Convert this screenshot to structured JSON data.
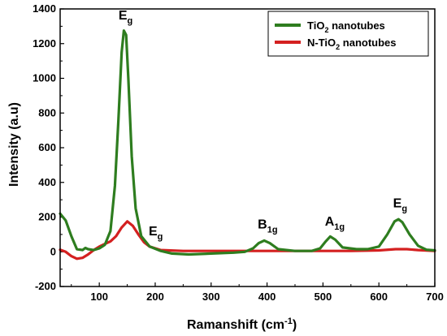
{
  "chart_data": {
    "type": "line",
    "xlabel": "Ramanshift (cm",
    "xlabel_sup": "-1",
    "xlabel_tail": ")",
    "ylabel": "Intensity (a.u)",
    "xlim": [
      30,
      700
    ],
    "ylim": [
      -200,
      1400
    ],
    "x_ticks": [
      100,
      200,
      300,
      400,
      500,
      600,
      700
    ],
    "y_ticks": [
      -200,
      0,
      200,
      400,
      600,
      800,
      1000,
      1200,
      1400
    ],
    "legend_position": "top-right",
    "series": [
      {
        "name_main": "TiO",
        "name_sub": "2",
        "name_tail": " nanotubes",
        "color": "#2e7d1f",
        "points": [
          [
            30,
            220
          ],
          [
            40,
            180
          ],
          [
            50,
            90
          ],
          [
            60,
            15
          ],
          [
            70,
            10
          ],
          [
            75,
            22
          ],
          [
            80,
            15
          ],
          [
            90,
            10
          ],
          [
            100,
            20
          ],
          [
            110,
            40
          ],
          [
            120,
            120
          ],
          [
            128,
            380
          ],
          [
            134,
            750
          ],
          [
            140,
            1150
          ],
          [
            144,
            1275
          ],
          [
            148,
            1250
          ],
          [
            152,
            1000
          ],
          [
            158,
            550
          ],
          [
            165,
            250
          ],
          [
            175,
            90
          ],
          [
            190,
            30
          ],
          [
            210,
            5
          ],
          [
            230,
            -10
          ],
          [
            260,
            -15
          ],
          [
            300,
            -10
          ],
          [
            340,
            -5
          ],
          [
            360,
            0
          ],
          [
            375,
            20
          ],
          [
            385,
            50
          ],
          [
            395,
            65
          ],
          [
            405,
            50
          ],
          [
            420,
            15
          ],
          [
            450,
            5
          ],
          [
            480,
            5
          ],
          [
            495,
            20
          ],
          [
            505,
            60
          ],
          [
            513,
            88
          ],
          [
            522,
            70
          ],
          [
            535,
            25
          ],
          [
            560,
            15
          ],
          [
            580,
            15
          ],
          [
            600,
            30
          ],
          [
            615,
            100
          ],
          [
            628,
            175
          ],
          [
            635,
            188
          ],
          [
            642,
            170
          ],
          [
            655,
            100
          ],
          [
            670,
            35
          ],
          [
            685,
            12
          ],
          [
            700,
            8
          ]
        ]
      },
      {
        "name_main": "N-TiO",
        "name_sub": "2",
        "name_tail": " nanotubes",
        "color": "#d42020",
        "points": [
          [
            30,
            12
          ],
          [
            40,
            0
          ],
          [
            50,
            -25
          ],
          [
            60,
            -40
          ],
          [
            70,
            -35
          ],
          [
            80,
            -15
          ],
          [
            90,
            10
          ],
          [
            100,
            30
          ],
          [
            110,
            45
          ],
          [
            120,
            60
          ],
          [
            130,
            90
          ],
          [
            140,
            140
          ],
          [
            150,
            175
          ],
          [
            160,
            150
          ],
          [
            170,
            100
          ],
          [
            180,
            55
          ],
          [
            190,
            30
          ],
          [
            210,
            10
          ],
          [
            250,
            5
          ],
          [
            300,
            5
          ],
          [
            350,
            5
          ],
          [
            400,
            5
          ],
          [
            450,
            5
          ],
          [
            500,
            5
          ],
          [
            550,
            5
          ],
          [
            600,
            8
          ],
          [
            630,
            15
          ],
          [
            650,
            15
          ],
          [
            670,
            10
          ],
          [
            700,
            5
          ]
        ]
      }
    ],
    "annotations": [
      {
        "main": "E",
        "sub": "g",
        "x": 146,
        "y": 1340
      },
      {
        "main": "E",
        "sub": "g",
        "x": 200,
        "y": 95
      },
      {
        "main": "B",
        "sub": "1g",
        "x": 395,
        "y": 135
      },
      {
        "main": "A",
        "sub": "1g",
        "x": 515,
        "y": 150
      },
      {
        "main": "E",
        "sub": "g",
        "x": 637,
        "y": 255
      }
    ]
  }
}
